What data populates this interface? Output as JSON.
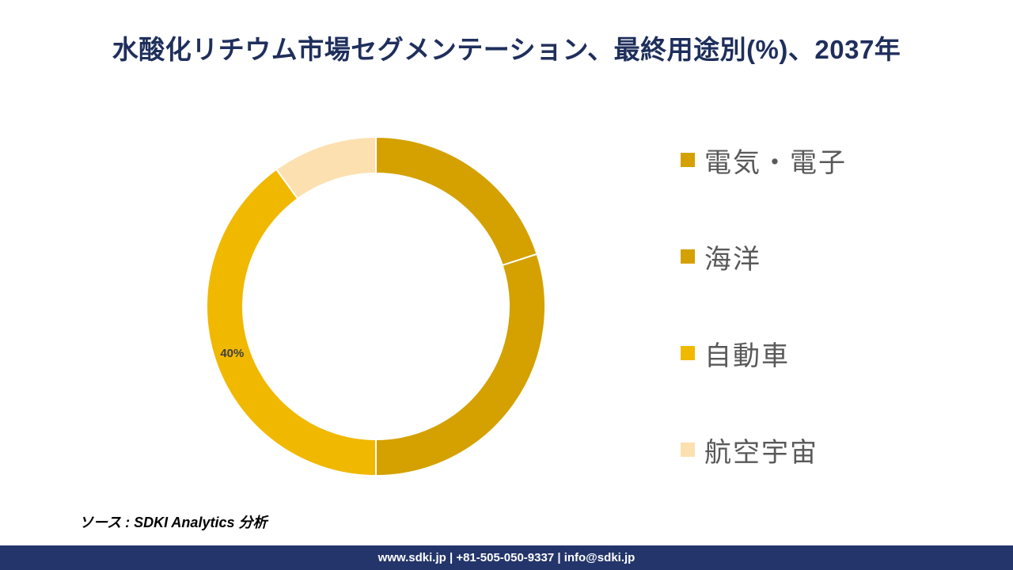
{
  "title": "水酸化リチウム市場セグメンテーション、最終用途別(%)、2037年",
  "chart_data": {
    "type": "pie",
    "donut": true,
    "categories": [
      "電気・電子",
      "海洋",
      "自動車",
      "航空宇宙"
    ],
    "values": [
      20,
      30,
      40,
      10
    ],
    "colors": [
      "#d4a100",
      "#d4a100",
      "#f1b800",
      "#fde0b0"
    ],
    "data_labels": [
      {
        "category": "自動車",
        "text": "40%"
      }
    ],
    "legend_position": "right"
  },
  "source_text": "ソース : SDKI Analytics 分析",
  "footer_text": "www.sdki.jp | +81-505-050-9337 | info@sdki.jp"
}
